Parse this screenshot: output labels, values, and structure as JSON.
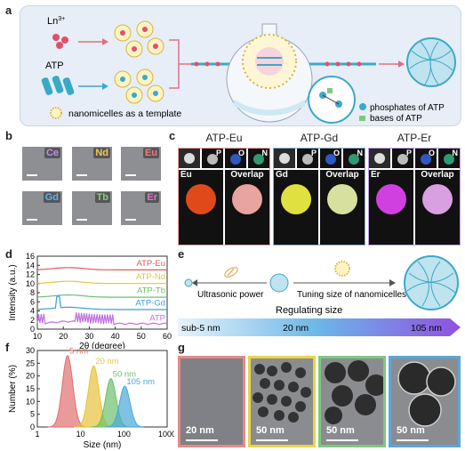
{
  "panel_labels": {
    "a": "a",
    "b": "b",
    "c": "c",
    "d": "d",
    "e": "e",
    "f": "f",
    "g": "g"
  },
  "panel_a": {
    "ln_label": "Ln",
    "ln_superscript": "3+",
    "atp_label": "ATP",
    "template_label": "nanomicelles as a template",
    "legend_phosphates": "phosphates of ATP",
    "legend_bases": "bases of ATP",
    "colors": {
      "phosphate": "#3aa9c9",
      "base": "#7fc97f",
      "ln": "#e0506a",
      "micelle": "#d9b43a"
    }
  },
  "panel_b": {
    "tiles": [
      {
        "label": "Ce",
        "color": "#c58cf0"
      },
      {
        "label": "Nd",
        "color": "#f3c94b"
      },
      {
        "label": "Eu",
        "color": "#f07a7a"
      },
      {
        "label": "Gd",
        "color": "#5fb4e8"
      },
      {
        "label": "Tb",
        "color": "#7bd07b"
      },
      {
        "label": "Er",
        "color": "#e070d0"
      }
    ]
  },
  "panel_c": {
    "groups": [
      {
        "title": "ATP-Eu",
        "element": "Eu",
        "overlap": "Overlap",
        "map_color": "#e04a1a",
        "overlap_color": "#e8a4a0"
      },
      {
        "title": "ATP-Gd",
        "element": "Gd",
        "overlap": "Overlap",
        "map_color": "#e0e040",
        "overlap_color": "#d8e0a0"
      },
      {
        "title": "ATP-Er",
        "element": "Er",
        "overlap": "Overlap",
        "map_color": "#d040e0",
        "overlap_color": "#d8a0e0"
      }
    ],
    "small_labels": [
      "P",
      "O",
      "N"
    ]
  },
  "panel_e": {
    "left_label": "Ultrasonic power",
    "right_label": "Tuning size of nanomicelles",
    "regulating": "Regulating size",
    "scale_labels": [
      "sub-5 nm",
      "20 nm",
      "105 nm"
    ]
  },
  "panel_g": {
    "boxes": [
      {
        "scale": "20 nm",
        "border": "#e58a8a"
      },
      {
        "scale": "50 nm",
        "border": "#e8d54a"
      },
      {
        "scale": "50 nm",
        "border": "#7fc97f"
      },
      {
        "scale": "50 nm",
        "border": "#5aa7d9"
      }
    ]
  },
  "chart_data": [
    {
      "type": "line",
      "panel": "d",
      "xlabel": "2θ (degree)",
      "ylabel": "Intensity (a.u.)",
      "xlim": [
        10,
        60
      ],
      "ylim": [
        0,
        16
      ],
      "xticks": [
        10,
        20,
        30,
        40,
        50,
        60
      ],
      "yticks": [
        0,
        2,
        4,
        6,
        8,
        10,
        12,
        14,
        16
      ],
      "series": [
        {
          "name": "ATP-Eu",
          "color": "#e05a5a",
          "offset": 13.0
        },
        {
          "name": "ATP-Nd",
          "color": "#e8c23a",
          "offset": 10.0
        },
        {
          "name": "ATP-Tb",
          "color": "#6cc06c",
          "offset": 7.0
        },
        {
          "name": "ATP-Gd",
          "color": "#3aa0d8",
          "offset": 4.3
        },
        {
          "name": "ATP",
          "color": "#c070e0",
          "offset": 1.0
        }
      ]
    },
    {
      "type": "line",
      "panel": "f",
      "xlabel": "Size (nm)",
      "ylabel": "Number (%)",
      "xscale": "log",
      "xlim": [
        1,
        1000
      ],
      "ylim": [
        0,
        30
      ],
      "xticks": [
        "1",
        "10",
        "100",
        "1000"
      ],
      "yticks": [
        0,
        5,
        10,
        15,
        20,
        25,
        30
      ],
      "series": [
        {
          "name": "5 nm",
          "center": 5,
          "peak": 28,
          "color": "#e07070"
        },
        {
          "name": "20 nm",
          "center": 20,
          "peak": 24,
          "color": "#e8c23a"
        },
        {
          "name": "50 nm",
          "center": 50,
          "peak": 19,
          "color": "#6cc06c"
        },
        {
          "name": "105 nm",
          "center": 105,
          "peak": 16,
          "color": "#4aa8d8"
        }
      ]
    }
  ]
}
